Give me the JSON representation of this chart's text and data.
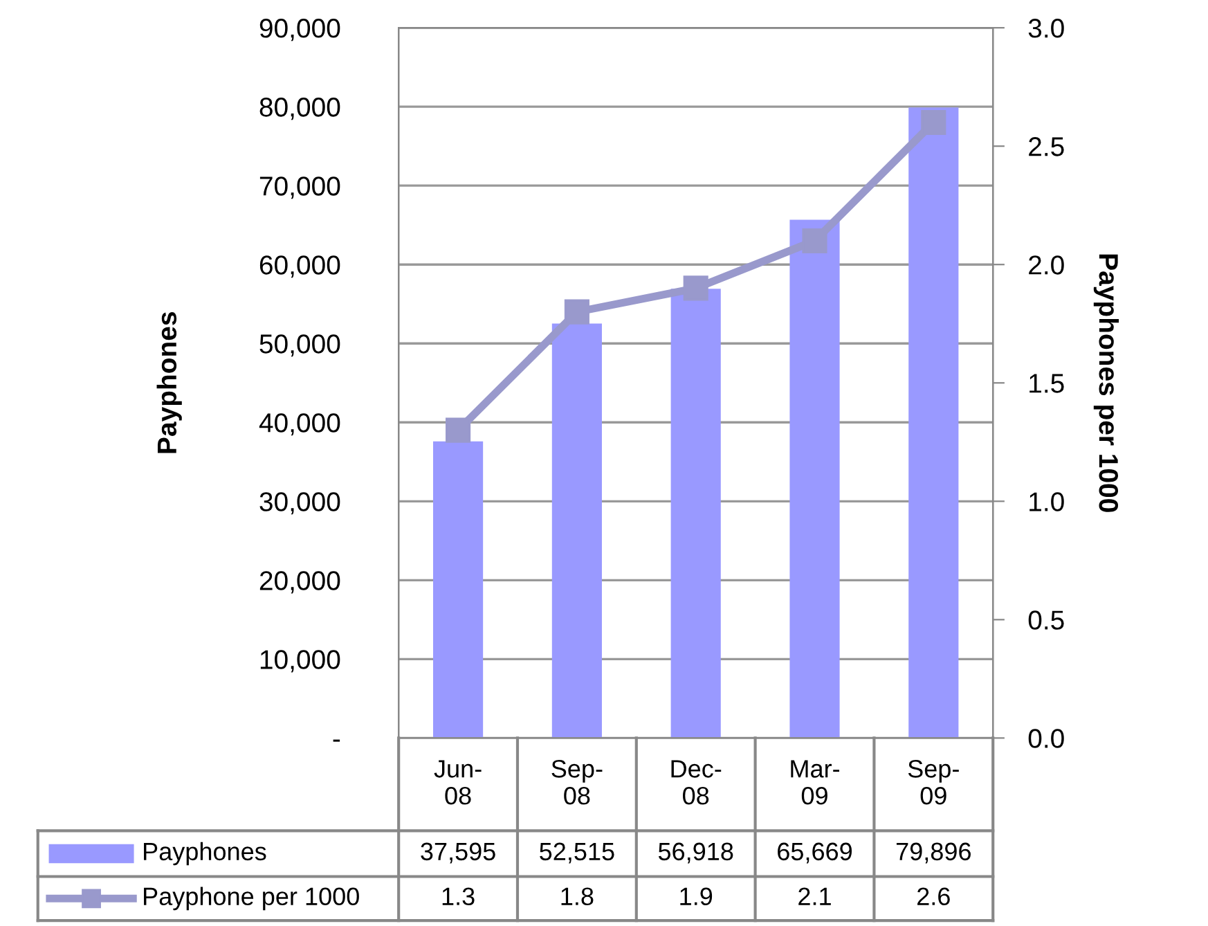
{
  "chart_data": {
    "type": "bar",
    "ylabel": "Payphones",
    "y2label": "Payphones per 1000",
    "categories": [
      "Jun-08",
      "Sep-08",
      "Dec-08",
      "Mar-09",
      "Sep-09"
    ],
    "series": [
      {
        "name": "Payphones",
        "color": "#9999ff",
        "values": [
          37595,
          52515,
          56918,
          65669,
          79896
        ],
        "value_labels": [
          "37,595",
          "52,515",
          "56,918",
          "65,669",
          "79,896"
        ]
      },
      {
        "name": "Payphone per 1000",
        "type": "line",
        "axis": "y2",
        "color": "#9999cc",
        "marker": "square",
        "values": [
          1.3,
          1.8,
          1.9,
          2.1,
          2.6
        ],
        "value_labels": [
          "1.3",
          "1.8",
          "1.9",
          "2.1",
          "2.6"
        ]
      }
    ],
    "ylim": [
      0,
      90000
    ],
    "yticks": [
      {
        "value": 0,
        "label": "-"
      },
      {
        "value": 10000,
        "label": "10,000"
      },
      {
        "value": 20000,
        "label": "20,000"
      },
      {
        "value": 30000,
        "label": "30,000"
      },
      {
        "value": 40000,
        "label": "40,000"
      },
      {
        "value": 50000,
        "label": "50,000"
      },
      {
        "value": 60000,
        "label": "60,000"
      },
      {
        "value": 70000,
        "label": "70,000"
      },
      {
        "value": 80000,
        "label": "80,000"
      },
      {
        "value": 90000,
        "label": "90,000"
      }
    ],
    "y2lim": [
      0,
      3
    ],
    "y2ticks": [
      {
        "value": 0,
        "label": "0.0"
      },
      {
        "value": 0.5,
        "label": "0.5"
      },
      {
        "value": 1,
        "label": "1.0"
      },
      {
        "value": 1.5,
        "label": "1.5"
      },
      {
        "value": 2,
        "label": "2.0"
      },
      {
        "value": 2.5,
        "label": "2.5"
      },
      {
        "value": 3,
        "label": "3.0"
      }
    ],
    "grid": "y",
    "legend": "bottom"
  }
}
